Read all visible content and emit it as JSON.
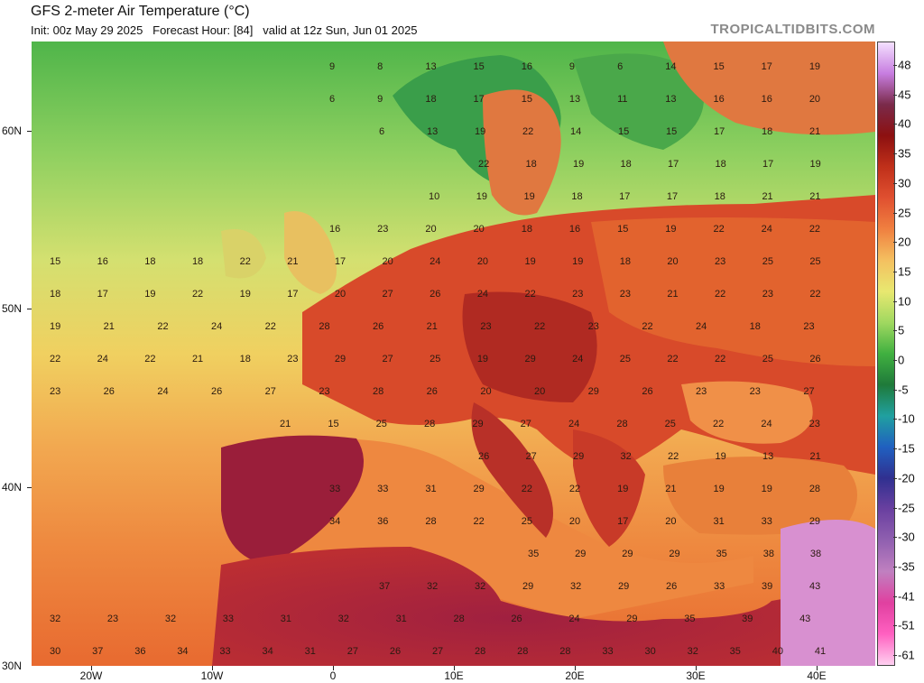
{
  "header": {
    "title": "GFS 2-meter Air Temperature (°C)",
    "subtitle": "Init: 00z May 29 2025   Forecast Hour: [84]   valid at 12z Sun, Jun 01 2025",
    "brand": "TROPICALTIDBITS.COM"
  },
  "axes": {
    "lat_labels": [
      "60N",
      "50N",
      "40N",
      "30N"
    ],
    "lon_labels": [
      "20W",
      "10W",
      "0",
      "10E",
      "20E",
      "30E",
      "40E"
    ]
  },
  "colorbar": {
    "labels": [
      "48",
      "45",
      "40",
      "35",
      "30",
      "25",
      "20",
      "15",
      "10",
      "5",
      "0",
      "-5",
      "-10",
      "-15",
      "-20",
      "-25",
      "-30",
      "-35",
      "-41",
      "-51",
      "-61"
    ],
    "colors": [
      "#f4e0ff",
      "#c77de0",
      "#7a2a4a",
      "#8c1010",
      "#c0301a",
      "#e05030",
      "#f08040",
      "#f4c060",
      "#e8e870",
      "#a0d860",
      "#40b040",
      "#1f7a3a",
      "#20a0a0",
      "#2060c0",
      "#303090",
      "#6a40a0",
      "#9060b0",
      "#c080c0",
      "#e040a0",
      "#ff60c0",
      "#ffd0f0"
    ]
  },
  "temperature_labels": {
    "rows": [
      [
        "9",
        "8",
        "13",
        "15",
        "16",
        "9",
        "6",
        "14",
        "15",
        "17",
        "19"
      ],
      [
        "6",
        "9",
        "18",
        "17",
        "15",
        "13",
        "11",
        "13",
        "16",
        "16",
        "20"
      ],
      [
        "6",
        "13",
        "19",
        "22",
        "14",
        "15",
        "15",
        "17",
        "18",
        "21"
      ],
      [
        "22",
        "18",
        "19",
        "18",
        "17",
        "18",
        "17",
        "19"
      ],
      [
        "10",
        "19",
        "19",
        "18",
        "17",
        "17",
        "18",
        "21",
        "21"
      ],
      [
        "16",
        "23",
        "20",
        "20",
        "18",
        "16",
        "15",
        "19",
        "22",
        "24",
        "22"
      ],
      [
        "15",
        "16",
        "18",
        "18",
        "22",
        "21",
        "17",
        "20",
        "24",
        "20",
        "19",
        "19",
        "18",
        "20",
        "23",
        "25",
        "25"
      ],
      [
        "18",
        "17",
        "19",
        "22",
        "19",
        "17",
        "20",
        "27",
        "26",
        "24",
        "22",
        "23",
        "23",
        "21",
        "22",
        "23",
        "22"
      ],
      [
        "19",
        "21",
        "22",
        "24",
        "22",
        "28",
        "26",
        "21",
        "23",
        "22",
        "23",
        "22",
        "24",
        "18",
        "23"
      ],
      [
        "22",
        "24",
        "22",
        "21",
        "18",
        "23",
        "29",
        "27",
        "25",
        "19",
        "29",
        "24",
        "25",
        "22",
        "22",
        "25",
        "26"
      ],
      [
        "23",
        "26",
        "24",
        "26",
        "27",
        "23",
        "28",
        "26",
        "20",
        "20",
        "29",
        "26",
        "23",
        "23",
        "27"
      ],
      [
        "21",
        "15",
        "25",
        "28",
        "29",
        "27",
        "24",
        "28",
        "25",
        "22",
        "24",
        "23"
      ],
      [
        "26",
        "27",
        "29",
        "32",
        "22",
        "19",
        "13",
        "21"
      ],
      [
        "33",
        "33",
        "31",
        "29",
        "22",
        "22",
        "19",
        "21",
        "19",
        "19",
        "28"
      ],
      [
        "34",
        "36",
        "28",
        "22",
        "25",
        "20",
        "17",
        "20",
        "31",
        "33",
        "29"
      ],
      [
        "35",
        "29",
        "29",
        "29",
        "35",
        "38",
        "38"
      ],
      [
        "37",
        "32",
        "32",
        "29",
        "32",
        "29",
        "26",
        "33",
        "39",
        "43"
      ],
      [
        "32",
        "23",
        "32",
        "33",
        "31",
        "32",
        "31",
        "28",
        "26",
        "24",
        "29",
        "35",
        "39",
        "43"
      ],
      [
        "30",
        "37",
        "36",
        "34",
        "33",
        "34",
        "31",
        "27",
        "26",
        "27",
        "28",
        "28",
        "28",
        "33",
        "30",
        "32",
        "35",
        "40",
        "41"
      ]
    ]
  }
}
